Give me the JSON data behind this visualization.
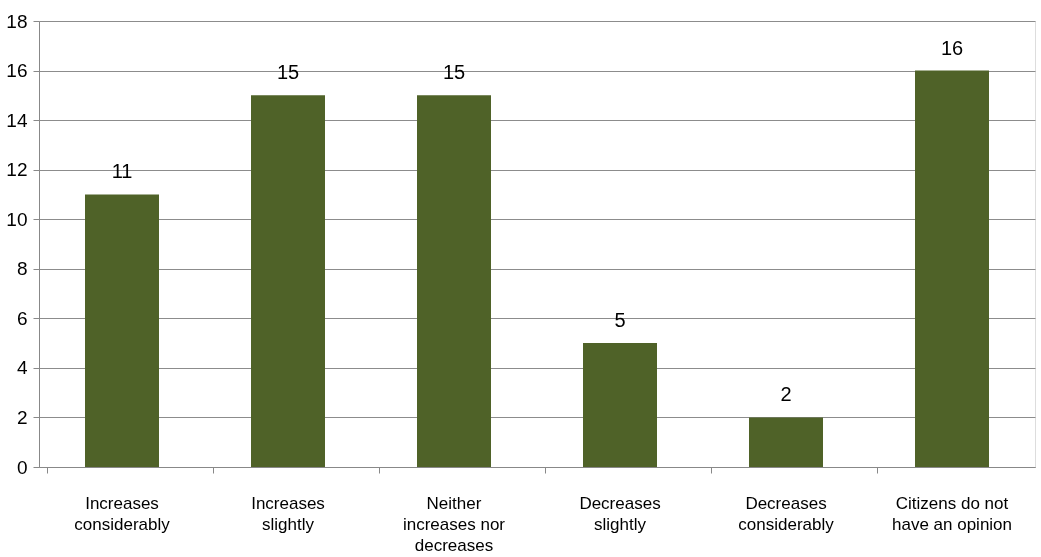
{
  "chart_data": {
    "type": "bar",
    "categories": [
      "Increases considerably",
      "Increases slightly",
      "Neither increases nor decreases",
      "Decreases slightly",
      "Decreases considerably",
      "Citizens do not have an opinion"
    ],
    "values": [
      11,
      15,
      15,
      5,
      2,
      16
    ],
    "color": "#4f6228",
    "ylim": [
      0,
      18
    ],
    "yticks": [
      0,
      2,
      4,
      6,
      8,
      10,
      12,
      14,
      16,
      18
    ],
    "grid": "y",
    "data_labels": true
  }
}
